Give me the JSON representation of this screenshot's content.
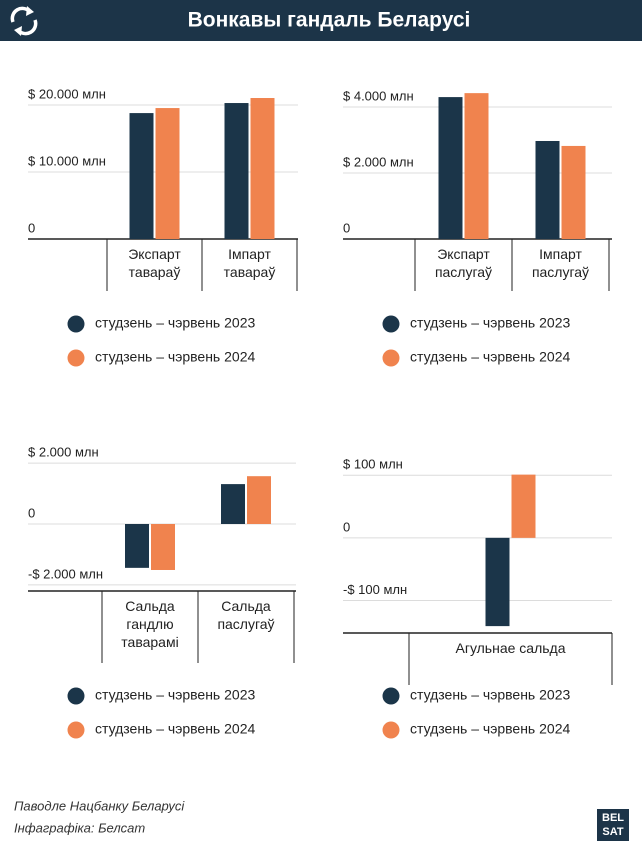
{
  "header": {
    "title": "Вонкавы гандаль Беларусі"
  },
  "chart_data": [
    {
      "type": "bar",
      "categories": [
        "Экспарт тавараў",
        "Імпарт тавараў"
      ],
      "series": [
        {
          "name": "студзень – чэрвень 2023",
          "color": "#1b3549",
          "values": [
            18800,
            20300
          ]
        },
        {
          "name": "студзень – чэрвень 2024",
          "color": "#f0834e",
          "values": [
            19550,
            21050
          ]
        }
      ],
      "ylim": [
        0,
        21500
      ],
      "yticks": [
        0,
        {
          "value": 10000,
          "label": "$ 10.000 млн"
        },
        {
          "value": 20000,
          "label": "$ 20.000 млн"
        }
      ],
      "grid": true
    },
    {
      "type": "bar",
      "categories": [
        "Экспарт паслугаў",
        "Імпарт паслугаў"
      ],
      "series": [
        {
          "name": "студзень – чэрвень 2023",
          "color": "#1b3549",
          "values": [
            4300,
            2970
          ]
        },
        {
          "name": "студзень – чэрвень 2024",
          "color": "#f0834e",
          "values": [
            4420,
            2820
          ]
        }
      ],
      "ylim": [
        0,
        4500
      ],
      "yticks": [
        0,
        {
          "value": 2000,
          "label": "$ 2.000 млн"
        },
        {
          "value": 4000,
          "label": "$ 4.000 млн"
        }
      ],
      "grid": true
    },
    {
      "type": "bar",
      "categories": [
        "Сальда гандлю таварамі",
        "Сальда паслугаў"
      ],
      "series": [
        {
          "name": "студзень – чэрвень 2023",
          "color": "#1b3549",
          "values": [
            -1440,
            1310
          ]
        },
        {
          "name": "студзень – чэрвень 2024",
          "color": "#f0834e",
          "values": [
            -1510,
            1570
          ]
        }
      ],
      "ylim": [
        -2200,
        2200
      ],
      "yticks": [
        {
          "value": -2000,
          "label": "-$ 2.000 млн"
        },
        0,
        {
          "value": 2000,
          "label": "$ 2.000 млн"
        }
      ],
      "grid": true
    },
    {
      "type": "bar",
      "categories": [
        "Агульнае сальда"
      ],
      "series": [
        {
          "name": "студзень – чэрвень 2023",
          "color": "#1b3549",
          "values": [
            -141
          ]
        },
        {
          "name": "студзень – чэрвень 2024",
          "color": "#f0834e",
          "values": [
            101
          ]
        }
      ],
      "ylim": [
        -152,
        110
      ],
      "yticks": [
        {
          "value": -100,
          "label": "-$ 100 млн"
        },
        0,
        {
          "value": 100,
          "label": "$ 100 млн"
        }
      ],
      "grid": true
    }
  ],
  "footer": {
    "source": "Паводле Нацбанку Беларусі",
    "credit": "Інфаграфіка: Белсат",
    "logo": [
      "BEL",
      "SAT"
    ]
  }
}
